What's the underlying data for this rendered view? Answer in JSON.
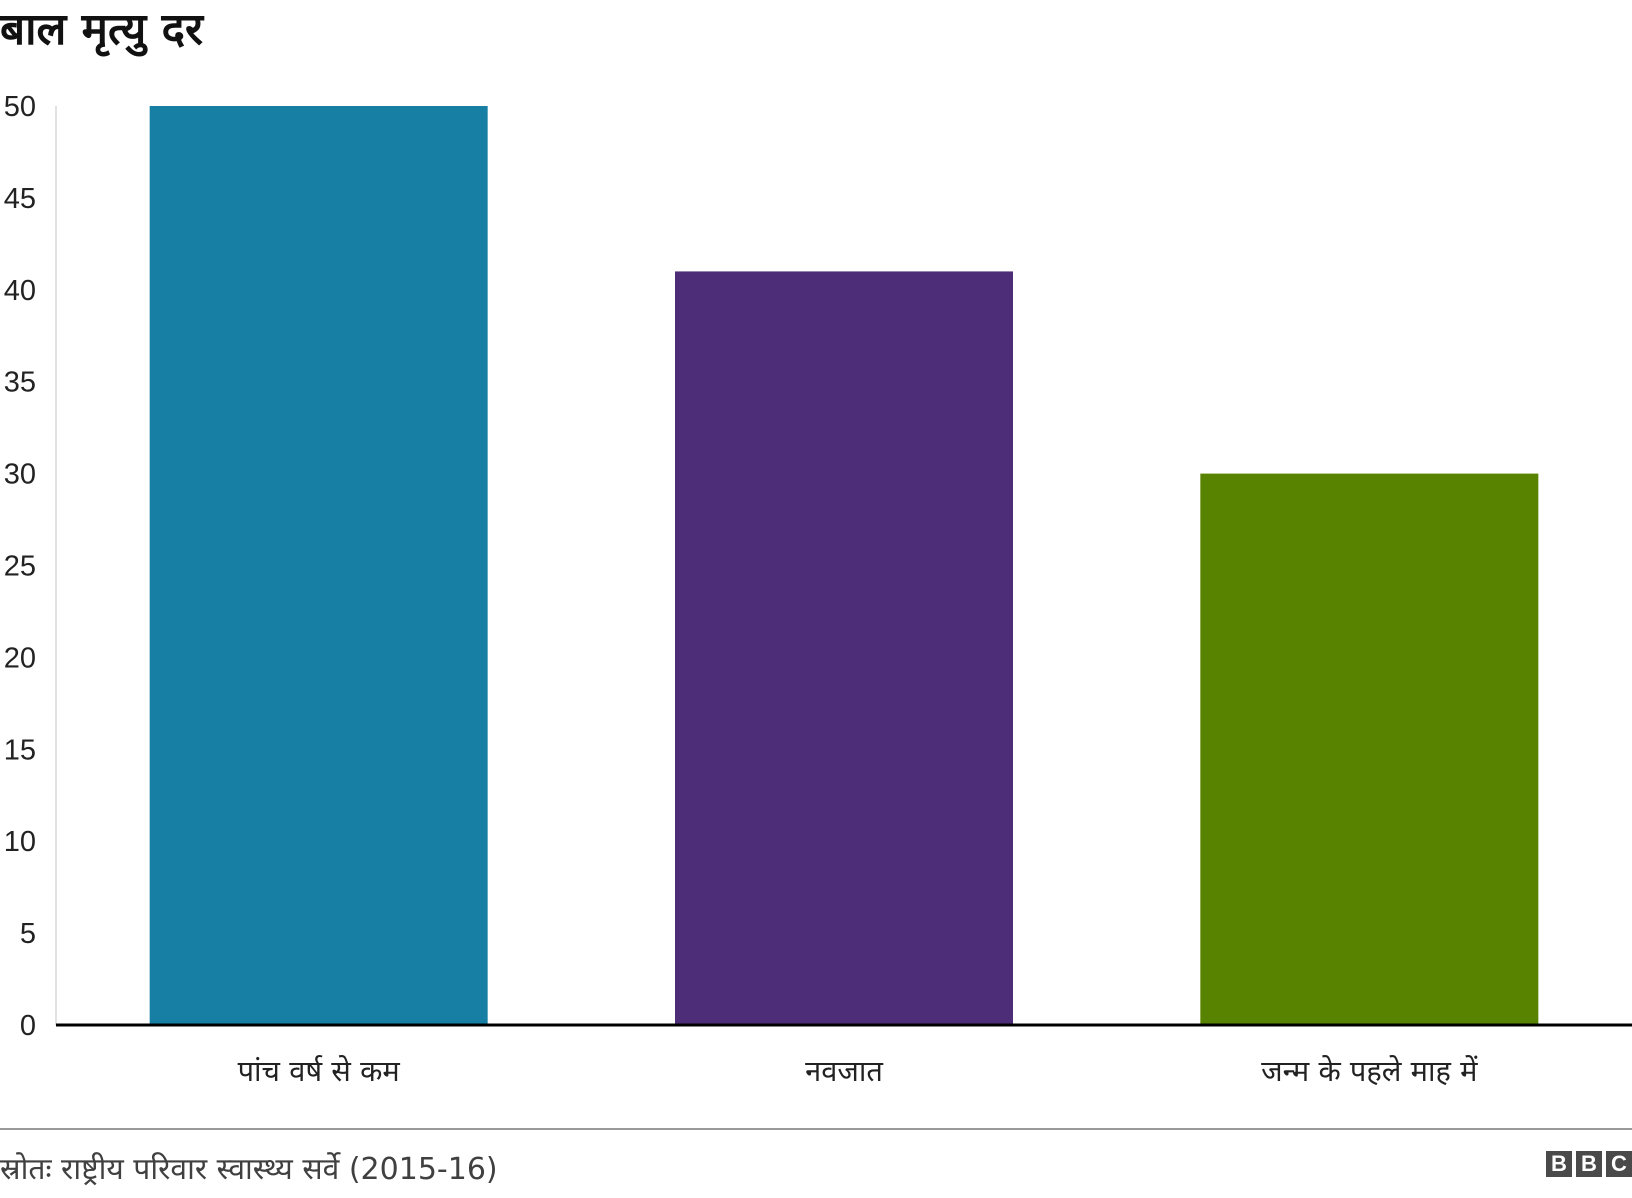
{
  "chart_data": {
    "type": "bar",
    "title": "बाल मृत्यु दर",
    "categories": [
      "पांच वर्ष से कम",
      "नवजात",
      "जन्म के पहले माह में"
    ],
    "values": [
      50,
      41,
      30
    ],
    "colors": [
      "#167fa3",
      "#4e2d78",
      "#588300"
    ],
    "ylim": [
      0,
      50
    ],
    "yticks": [
      0,
      5,
      10,
      15,
      20,
      25,
      30,
      35,
      40,
      45,
      50
    ],
    "xlabel": "",
    "ylabel": "",
    "grid": false,
    "legend": "none"
  },
  "footer": {
    "source": "स्रोतः राष्ट्रीय परिवार स्वास्थ्य सर्वे (2015-16)",
    "logo_letters": [
      "B",
      "B",
      "C"
    ]
  }
}
